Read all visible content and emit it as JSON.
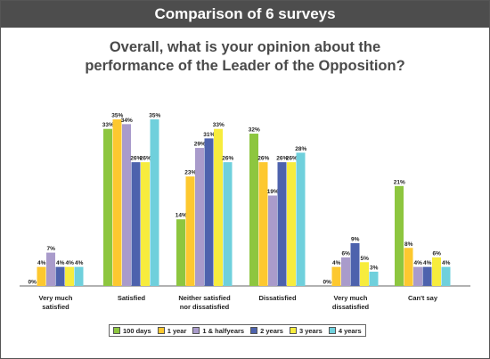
{
  "header": {
    "title": "Comparison of 6 surveys"
  },
  "question": {
    "line1": "Overall, what is your opinion about the",
    "line2": "performance of the Leader of the Opposition?"
  },
  "colors": {
    "100 days": "#8dc63f",
    "1 year": "#fdc82f",
    "1 & halfyears": "#a99bcb",
    "2 years": "#4d62ad",
    "3 years": "#f7ec3d",
    "4 years": "#6fd0dc"
  },
  "chart_data": {
    "type": "bar",
    "categories": [
      [
        "Very much",
        "satisfied"
      ],
      [
        "Satisfied"
      ],
      [
        "Neither satisfied",
        "nor dissatisfied"
      ],
      [
        "Dissatisfied"
      ],
      [
        "Very much",
        "dissatisfied"
      ],
      [
        "Can't say"
      ]
    ],
    "series": [
      {
        "name": "100 days",
        "values": [
          0,
          33,
          14,
          32,
          0,
          21
        ]
      },
      {
        "name": "1 year",
        "values": [
          4,
          35,
          23,
          26,
          4,
          8
        ]
      },
      {
        "name": "1 & halfyears",
        "values": [
          7,
          34,
          29,
          19,
          6,
          4
        ]
      },
      {
        "name": "2 years",
        "values": [
          4,
          26,
          31,
          26,
          9,
          4
        ]
      },
      {
        "name": "3 years",
        "values": [
          4,
          26,
          33,
          26,
          5,
          6
        ]
      },
      {
        "name": "4 years",
        "values": [
          4,
          35,
          26,
          28,
          3,
          4
        ]
      }
    ],
    "value_suffix": "%",
    "ylim": [
      0,
      40
    ],
    "legend_position": "bottom",
    "grid": false
  }
}
